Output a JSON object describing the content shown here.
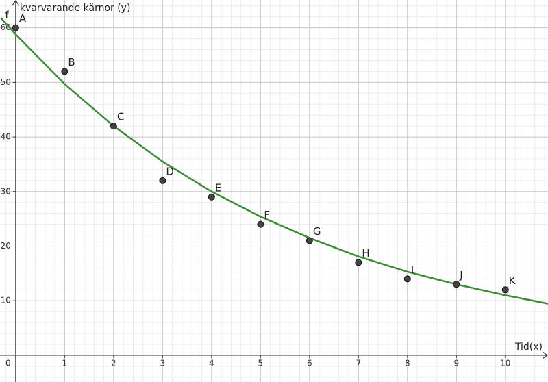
{
  "chart_data": {
    "type": "scatter",
    "x_label": "Tid(x)",
    "y_label": "kvarvarande kärnor (y)",
    "labels": [
      "A",
      "B",
      "C",
      "D",
      "E",
      "F",
      "G",
      "H",
      "I",
      "J",
      "K"
    ],
    "x": [
      0,
      1,
      2,
      3,
      4,
      5,
      6,
      7,
      8,
      9,
      10
    ],
    "values": [
      60,
      52,
      42,
      32,
      29,
      24,
      21,
      17,
      14,
      13,
      12
    ],
    "color": "#444444",
    "curve": {
      "name": "f",
      "color": "#3d8b37",
      "x": [
        -0.3,
        0,
        1,
        2,
        3,
        4,
        5,
        6,
        7,
        8,
        9,
        10,
        10.9
      ],
      "values": [
        61.8,
        58.8,
        49.7,
        42.0,
        35.5,
        30.0,
        25.4,
        21.5,
        18.1,
        15.3,
        13.0,
        11.0,
        9.4
      ]
    },
    "xlim": [
      -0.32,
      10.87
    ],
    "ylim": [
      -4.9,
      65.1
    ],
    "xticks": [
      0,
      1,
      2,
      3,
      4,
      5,
      6,
      7,
      8,
      9,
      10
    ],
    "yticks": [
      10,
      20,
      30,
      40,
      50,
      60
    ],
    "grid": true
  }
}
